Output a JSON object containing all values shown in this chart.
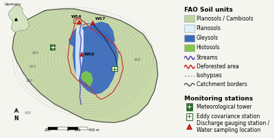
{
  "legend_title_soil": "FAO Soil units",
  "legend_title_monitoring": "Monitoring stations",
  "soil_labels": [
    "Planosols / Cambisols",
    "Planosols",
    "Gleysols",
    "Histosols"
  ],
  "soil_colors": [
    "#bdd4a4",
    "#ddeeff",
    "#3a6abf",
    "#7ec84a"
  ],
  "bg_color": "#f5f5f0",
  "map_bg": "#c8d9a8",
  "contour_color": "#999999",
  "gleysol_color": "#3a6abf",
  "planosol_color": "#ddeeff",
  "histosol_color": "#7ec84a",
  "deforested_color": "#cc3333",
  "stream_color": "#5555bb",
  "border_color": "#444444",
  "met_tower_color": "#2e6b30",
  "label_fontsize": 5.5,
  "title_fontsize": 6.5
}
